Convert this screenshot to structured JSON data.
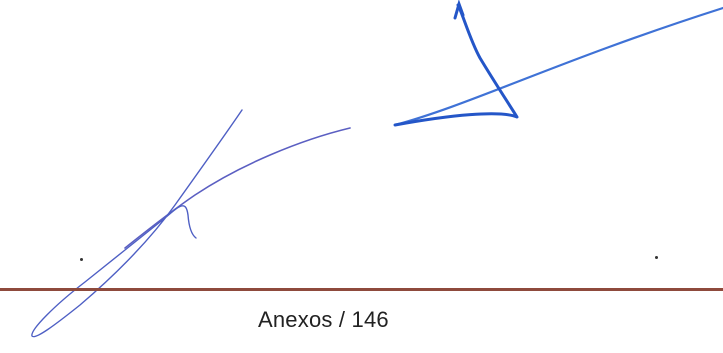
{
  "footer": {
    "label": "Anexos / 146"
  },
  "colors": {
    "ink": "#2f5fc6",
    "ink_light": "#4a78d8",
    "rule": "#8e4a3c",
    "text": "#222222"
  },
  "signature": {
    "icon": "handwritten-signature-icon"
  }
}
